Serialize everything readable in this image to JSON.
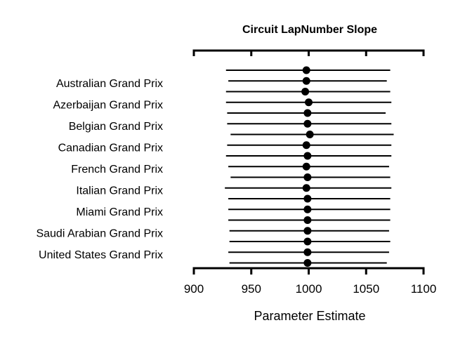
{
  "chart_data": {
    "type": "forest",
    "title": "Circuit LapNumber Slope",
    "xlabel": "Parameter Estimate",
    "xlim": [
      900,
      1100
    ],
    "xticks": [
      900,
      950,
      1000,
      1050,
      1100
    ],
    "xtick_labels": [
      "900",
      "950",
      "1000",
      "1050",
      "1100"
    ],
    "categories": [
      "Australian Grand Prix",
      "Azerbaijan Grand Prix",
      "Belgian Grand Prix",
      "Canadian Grand Prix",
      "French Grand Prix",
      "Italian Grand Prix",
      "Miami Grand Prix",
      "Saudi Arabian Grand Prix",
      "United States Grand Prix"
    ],
    "rows": [
      {
        "estimate": 998,
        "low": 928,
        "high": 1071
      },
      {
        "estimate": 998,
        "low": 930,
        "high": 1068
      },
      {
        "estimate": 997,
        "low": 928,
        "high": 1071
      },
      {
        "estimate": 1000,
        "low": 928,
        "high": 1072
      },
      {
        "estimate": 999,
        "low": 929,
        "high": 1067
      },
      {
        "estimate": 999,
        "low": 929,
        "high": 1072
      },
      {
        "estimate": 1001,
        "low": 932,
        "high": 1074
      },
      {
        "estimate": 998,
        "low": 929,
        "high": 1072
      },
      {
        "estimate": 999,
        "low": 928,
        "high": 1072
      },
      {
        "estimate": 998,
        "low": 930,
        "high": 1070
      },
      {
        "estimate": 999,
        "low": 932,
        "high": 1071
      },
      {
        "estimate": 998,
        "low": 927,
        "high": 1072
      },
      {
        "estimate": 999,
        "low": 930,
        "high": 1071
      },
      {
        "estimate": 999,
        "low": 930,
        "high": 1071
      },
      {
        "estimate": 999,
        "low": 930,
        "high": 1071
      },
      {
        "estimate": 999,
        "low": 931,
        "high": 1070
      },
      {
        "estimate": 999,
        "low": 931,
        "high": 1071
      },
      {
        "estimate": 999,
        "low": 930,
        "high": 1070
      },
      {
        "estimate": 999,
        "low": 931,
        "high": 1068
      }
    ],
    "label_rows": [
      0,
      2,
      4,
      6,
      8,
      10,
      12,
      14,
      16
    ],
    "grid": false,
    "legend": "none"
  }
}
